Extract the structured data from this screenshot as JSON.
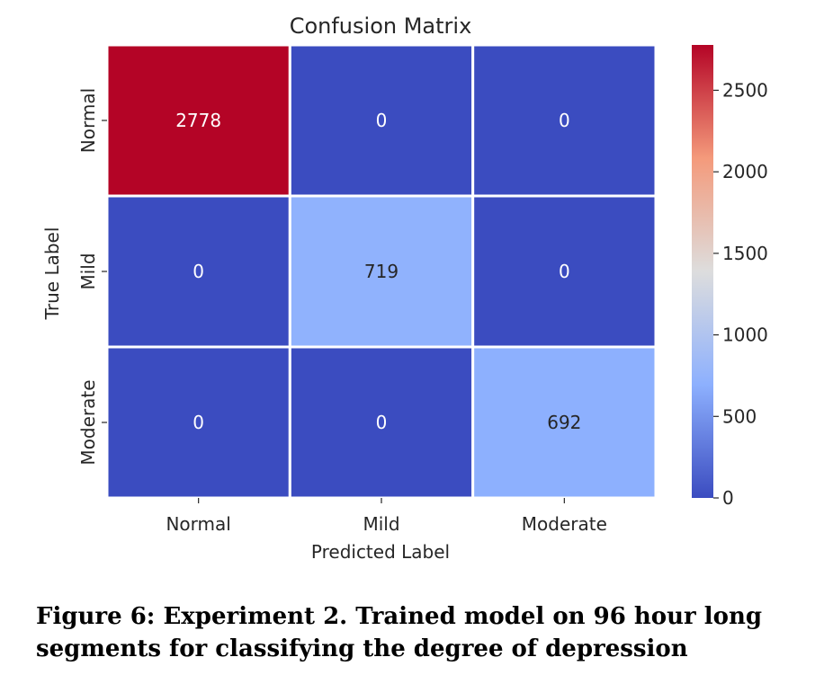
{
  "chart_data": {
    "type": "heatmap",
    "title": "Confusion Matrix",
    "xlabel": "Predicted Label",
    "ylabel": "True Label",
    "x_categories": [
      "Normal",
      "Mild",
      "Moderate"
    ],
    "y_categories": [
      "Normal",
      "Mild",
      "Moderate"
    ],
    "values": [
      [
        2778,
        0,
        0
      ],
      [
        0,
        719,
        0
      ],
      [
        0,
        0,
        692
      ]
    ],
    "colormap": "coolwarm",
    "vmin": 0,
    "vmax": 2778,
    "colorbar_ticks": [
      0,
      500,
      1000,
      1500,
      2000,
      2500
    ],
    "grid": false,
    "annotations": true
  },
  "caption": "Figure 6: Experiment 2. Trained model on 96 hour long segments for classifying the degree of depression"
}
